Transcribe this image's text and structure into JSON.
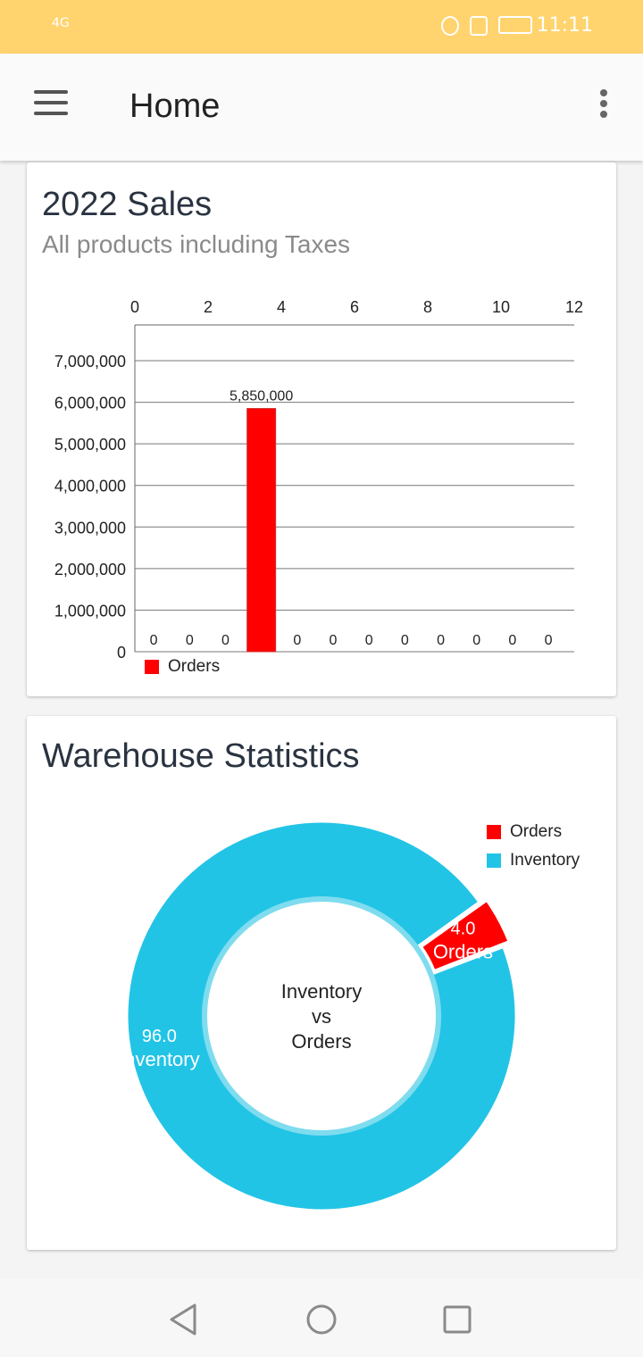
{
  "status_bar": {
    "network": "4G",
    "time": "11:11"
  },
  "app_bar": {
    "title": "Home",
    "menu_icon": "hamburger-menu-icon",
    "more_icon": "more-vertical-icon"
  },
  "sales_card": {
    "title": "2022 Sales",
    "subtitle": "All products including Taxes"
  },
  "warehouse_card": {
    "title": "Warehouse Statistics"
  },
  "chart_data": [
    {
      "type": "bar",
      "title": "2022 Sales",
      "subtitle": "All products including Taxes",
      "x_top_ticks": [
        "0",
        "2",
        "4",
        "6",
        "8",
        "10",
        "12"
      ],
      "xlim": [
        0,
        12
      ],
      "ylim": [
        0,
        7000000
      ],
      "y_ticks": [
        "0",
        "1,000,000",
        "2,000,000",
        "3,000,000",
        "4,000,000",
        "5,000,000",
        "6,000,000",
        "7,000,000"
      ],
      "grid": true,
      "legend_placement": "bottom-left",
      "series": [
        {
          "name": "Orders",
          "color": "#ff0000",
          "values": [
            0,
            0,
            0,
            5850000,
            0,
            0,
            0,
            0,
            0,
            0,
            0,
            0
          ],
          "data_labels": [
            "0",
            "0",
            "0",
            "5,850,000",
            "0",
            "0",
            "0",
            "0",
            "0",
            "0",
            "0",
            "0"
          ]
        }
      ]
    },
    {
      "type": "pie",
      "variant": "donut",
      "center_text": [
        "Inventory",
        "vs",
        "Orders"
      ],
      "legend_placement": "top-right",
      "slices": [
        {
          "name": "Orders",
          "value": 4.0,
          "label_value": "4.0",
          "color": "#ff0000"
        },
        {
          "name": "Inventory",
          "value": 96.0,
          "label_value": "96.0",
          "color": "#22c4e6"
        }
      ]
    }
  ],
  "nav_bar": {
    "back_icon": "back-triangle-icon",
    "home_icon": "home-circle-icon",
    "recents_icon": "recents-square-icon"
  }
}
